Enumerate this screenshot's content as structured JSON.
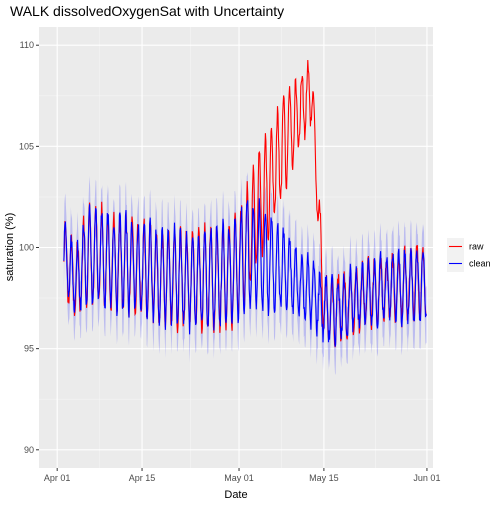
{
  "chart_data": {
    "type": "line",
    "title": "WALK dissolvedOxygenSat with Uncertainty",
    "xlabel": "Date",
    "ylabel": "saturation (%)",
    "x_type": "date",
    "xlim": [
      "2019-03-29",
      "2019-06-02"
    ],
    "ylim": [
      89.1,
      110.9
    ],
    "x_ticks": [
      {
        "date": "2019-04-01",
        "label": "Apr 01"
      },
      {
        "date": "2019-04-15",
        "label": "Apr 15"
      },
      {
        "date": "2019-05-01",
        "label": "May 01"
      },
      {
        "date": "2019-05-15",
        "label": "May 15"
      },
      {
        "date": "2019-06-01",
        "label": "Jun 01"
      }
    ],
    "y_ticks": [
      90,
      95,
      100,
      105,
      110
    ],
    "grid": true,
    "background": "#EBEBEB",
    "legend": {
      "position": "right",
      "title": ""
    },
    "series": [
      {
        "name": "raw",
        "color": "#FF0000",
        "x": [
          "2019-04-02",
          "2019-04-04",
          "2019-04-06",
          "2019-04-08",
          "2019-04-10",
          "2019-04-12",
          "2019-04-14",
          "2019-04-16",
          "2019-04-18",
          "2019-04-20",
          "2019-04-22",
          "2019-04-24",
          "2019-04-26",
          "2019-04-28",
          "2019-04-30",
          "2019-05-02",
          "2019-05-04",
          "2019-05-06",
          "2019-05-08",
          "2019-05-10",
          "2019-05-12",
          "2019-05-13",
          "2019-05-15",
          "2019-05-17",
          "2019-05-19",
          "2019-05-21",
          "2019-05-23",
          "2019-05-25",
          "2019-05-27",
          "2019-05-29",
          "2019-05-31",
          "2019-06-01"
        ],
        "mean": [
          99.6,
          98.3,
          99.5,
          99.6,
          99.2,
          99.3,
          99.0,
          98.9,
          98.5,
          98.6,
          98.4,
          98.4,
          98.5,
          98.6,
          98.7,
          100.0,
          101.8,
          103.2,
          104.8,
          106.0,
          107.4,
          107.8,
          97.0,
          96.9,
          97.2,
          97.6,
          97.8,
          98.0,
          98.0,
          98.1,
          98.3,
          98.3
        ],
        "amp": [
          1.8,
          1.5,
          2.4,
          2.3,
          2.2,
          2.2,
          2.2,
          2.2,
          2.2,
          2.3,
          2.3,
          2.3,
          2.4,
          2.4,
          2.5,
          2.7,
          2.6,
          2.5,
          2.4,
          2.0,
          1.5,
          1.5,
          1.4,
          1.5,
          1.5,
          1.5,
          1.5,
          1.5,
          1.6,
          1.6,
          1.7,
          1.7
        ],
        "ymin": 92.0,
        "ymax": 110.0
      },
      {
        "name": "clean",
        "color": "#0000FF",
        "x": [
          "2019-04-02",
          "2019-04-04",
          "2019-04-06",
          "2019-04-08",
          "2019-04-10",
          "2019-04-12",
          "2019-04-14",
          "2019-04-16",
          "2019-04-18",
          "2019-04-20",
          "2019-04-22",
          "2019-04-24",
          "2019-04-26",
          "2019-04-28",
          "2019-04-30",
          "2019-05-02",
          "2019-05-04",
          "2019-05-06",
          "2019-05-08",
          "2019-05-10",
          "2019-05-12",
          "2019-05-13",
          "2019-05-15",
          "2019-05-17",
          "2019-05-19",
          "2019-05-21",
          "2019-05-23",
          "2019-05-25",
          "2019-05-27",
          "2019-05-29",
          "2019-05-31",
          "2019-06-01"
        ],
        "mean": [
          99.6,
          98.3,
          99.5,
          99.6,
          99.2,
          99.3,
          99.0,
          98.9,
          98.5,
          98.6,
          98.4,
          98.4,
          98.5,
          98.6,
          98.7,
          99.6,
          99.6,
          99.2,
          99.0,
          98.4,
          98.0,
          97.8,
          97.0,
          96.9,
          97.2,
          97.6,
          97.8,
          98.0,
          98.0,
          98.1,
          98.3,
          98.3
        ],
        "amp": [
          1.8,
          1.5,
          2.4,
          2.3,
          2.2,
          2.2,
          2.2,
          2.2,
          2.2,
          2.3,
          2.3,
          2.3,
          2.4,
          2.4,
          2.5,
          2.7,
          2.6,
          2.3,
          2.0,
          1.6,
          1.5,
          1.5,
          1.4,
          1.5,
          1.5,
          1.5,
          1.5,
          1.5,
          1.6,
          1.6,
          1.7,
          1.7
        ],
        "ribbon_halfwidth": 1.4,
        "ribbon_color": "#0000FF",
        "ribbon_opacity": 0.2
      }
    ]
  }
}
